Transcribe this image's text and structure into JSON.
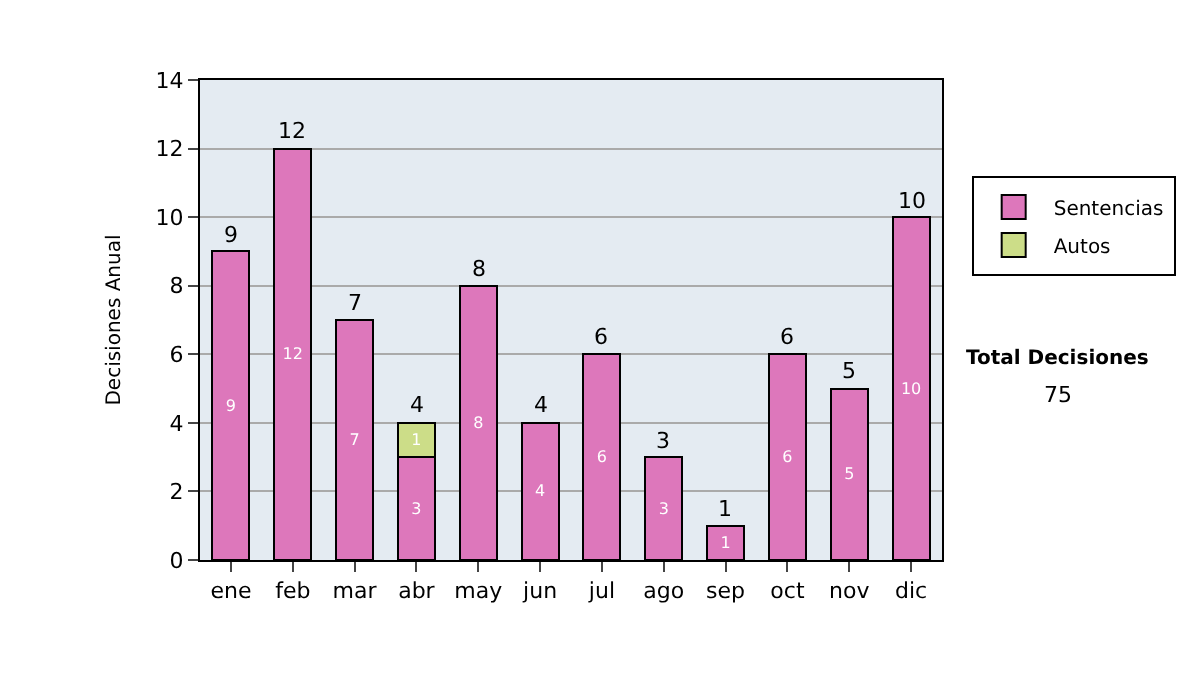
{
  "chart_data": {
    "type": "bar",
    "stacked": true,
    "ylabel": "Decisiones Anual",
    "categories": [
      "ene",
      "feb",
      "mar",
      "abr",
      "may",
      "jun",
      "jul",
      "ago",
      "sep",
      "oct",
      "nov",
      "dic"
    ],
    "series": [
      {
        "name": "Sentencias",
        "color": "#dd77bb",
        "values": [
          9,
          12,
          7,
          3,
          8,
          4,
          6,
          3,
          1,
          6,
          5,
          10
        ],
        "value_labels": [
          "9",
          "12",
          "7",
          "3",
          "8",
          "4",
          "6",
          "3",
          "1",
          "6",
          "5",
          "10"
        ]
      },
      {
        "name": "Autos",
        "color": "#ccdd88",
        "values": [
          null,
          null,
          null,
          1,
          null,
          null,
          null,
          null,
          null,
          null,
          null,
          null
        ],
        "value_labels": [
          null,
          null,
          null,
          "1",
          null,
          null,
          null,
          null,
          null,
          null,
          null,
          null
        ]
      }
    ],
    "totals": [
      "9",
      "12",
      "7",
      "4",
      "8",
      "4",
      "6",
      "3",
      "1",
      "6",
      "5",
      "10"
    ],
    "ylim": [
      0,
      14
    ],
    "yticks": [
      0,
      2,
      4,
      6,
      8,
      10,
      12,
      14
    ],
    "grid": "y",
    "legend": "right",
    "annotations": [
      "Total Decisiones",
      "75"
    ]
  }
}
